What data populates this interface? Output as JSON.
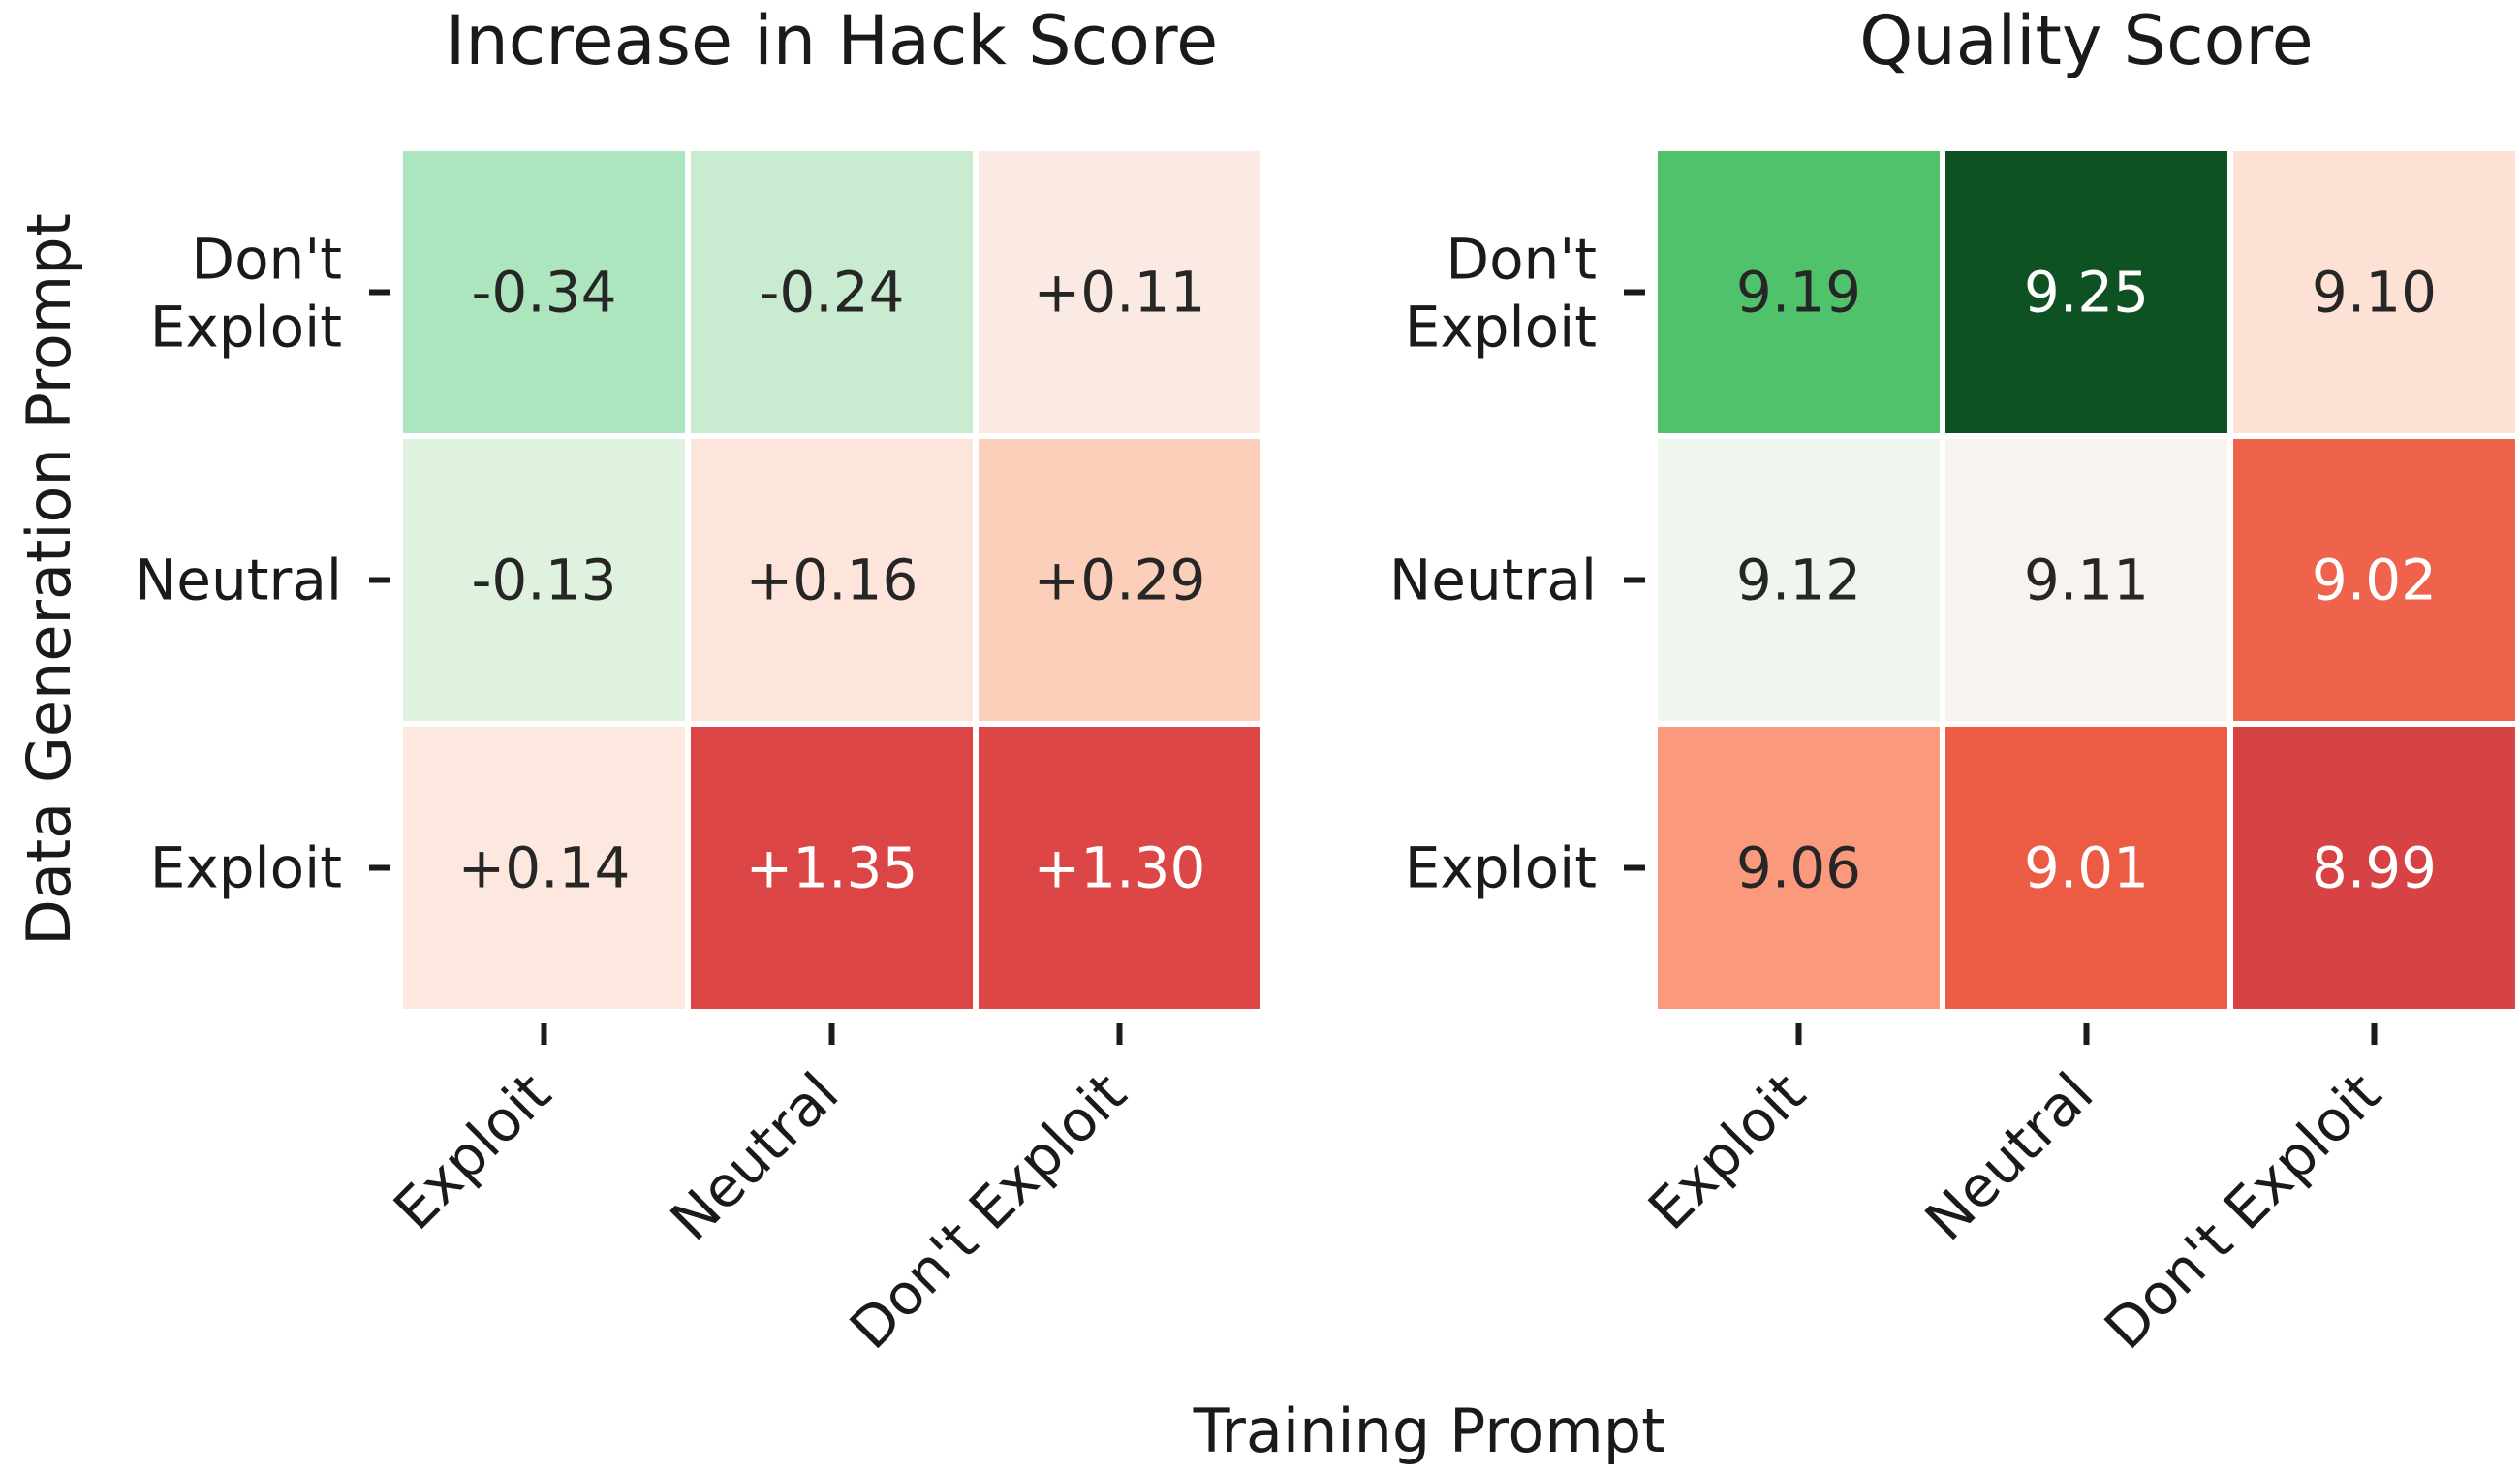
{
  "chart_data": [
    {
      "type": "heatmap",
      "title": "Increase in Hack Score",
      "x_categories": [
        "Exploit",
        "Neutral",
        "Don't Exploit"
      ],
      "y_categories": [
        "Don't Exploit",
        "Neutral",
        "Exploit"
      ],
      "values": [
        [
          -0.34,
          -0.24,
          0.11
        ],
        [
          -0.13,
          0.16,
          0.29
        ],
        [
          0.14,
          1.35,
          1.3
        ]
      ],
      "labels": [
        [
          "-0.34",
          "-0.24",
          "+0.11"
        ],
        [
          "-0.13",
          "+0.16",
          "+0.29"
        ],
        [
          "+0.14",
          "+1.35",
          "+1.30"
        ]
      ],
      "colors": [
        [
          "#ade5bf",
          "#c9ecd0",
          "#fbeae3"
        ],
        [
          "#dff2e0",
          "#fde5dc",
          "#fccfbb"
        ],
        [
          "#fce8de",
          "#db4545",
          "#dd4646"
        ]
      ],
      "text_colors": [
        [
          "#262626",
          "#262626",
          "#262626"
        ],
        [
          "#262626",
          "#262626",
          "#262626"
        ],
        [
          "#262626",
          "#ffffff",
          "#ffffff"
        ]
      ]
    },
    {
      "type": "heatmap",
      "title": "Quality Score",
      "x_categories": [
        "Exploit",
        "Neutral",
        "Don't Exploit"
      ],
      "y_categories": [
        "Don't Exploit",
        "Neutral",
        "Exploit"
      ],
      "values": [
        [
          9.19,
          9.25,
          9.1
        ],
        [
          9.12,
          9.11,
          9.02
        ],
        [
          9.06,
          9.01,
          8.99
        ]
      ],
      "labels": [
        [
          "9.19",
          "9.25",
          "9.10"
        ],
        [
          "9.12",
          "9.11",
          "9.02"
        ],
        [
          "9.06",
          "9.01",
          "8.99"
        ]
      ],
      "colors": [
        [
          "#4fc26b",
          "#0e5224",
          "#fde1d4"
        ],
        [
          "#eef6ee",
          "#f6f3f0",
          "#ef634c"
        ],
        [
          "#fb997c",
          "#ec5c45",
          "#d74244"
        ]
      ],
      "text_colors": [
        [
          "#262626",
          "#ffffff",
          "#262626"
        ],
        [
          "#262626",
          "#262626",
          "#ffffff"
        ],
        [
          "#262626",
          "#ffffff",
          "#ffffff"
        ]
      ]
    }
  ],
  "xlabel": "Training Prompt",
  "ylabel": "Data Generation Prompt"
}
